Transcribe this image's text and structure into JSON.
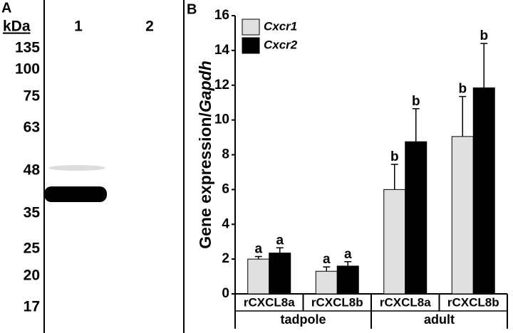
{
  "panel_a": {
    "label": "A",
    "unit": "kDa",
    "lanes": [
      "1",
      "2"
    ],
    "markers": [
      135,
      100,
      75,
      63,
      48,
      35,
      25,
      20,
      17
    ]
  },
  "chart_data": {
    "type": "bar",
    "label": "B",
    "ylabel": [
      "Gene expression/",
      "Gapdh"
    ],
    "categories": [
      "rCXCL8a",
      "rCXCL8b",
      "rCXCL8a",
      "rCXCL8b"
    ],
    "groups": [
      "tadpole",
      "adult"
    ],
    "series": [
      {
        "name": "Cxcr1",
        "color": "#e0e0e0",
        "values": [
          2.0,
          1.3,
          6.0,
          9.05
        ],
        "errors": [
          0.15,
          0.25,
          1.45,
          2.3
        ],
        "letters": [
          "a",
          "a",
          "b",
          "b"
        ]
      },
      {
        "name": "Cxcr2",
        "color": "#000000",
        "values": [
          2.35,
          1.6,
          8.75,
          11.85
        ],
        "errors": [
          0.3,
          0.25,
          1.9,
          2.55
        ],
        "letters": [
          "a",
          "a",
          "b",
          "b"
        ]
      }
    ],
    "ylim": [
      0,
      16
    ],
    "yticks": [
      0,
      2,
      4,
      6,
      8,
      10,
      12,
      14,
      16
    ]
  }
}
